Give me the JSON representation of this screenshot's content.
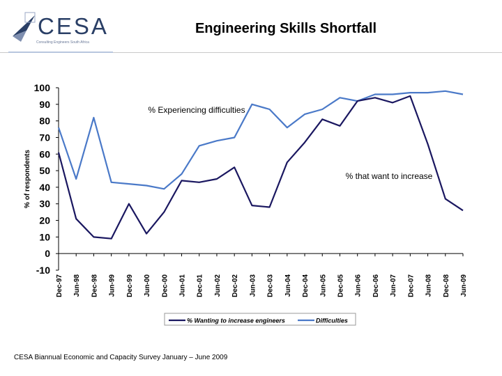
{
  "header": {
    "logo_text": "CESA",
    "logo_tagline": "Consulting Engineers South Africa",
    "title": "Engineering Skills Shortfall"
  },
  "footer": {
    "source": "CESA Biannual Economic and Capacity Survey January – June 2009"
  },
  "colors": {
    "series_increase": "#1a1760",
    "series_difficulties": "#4a79c8",
    "logo": "#2a3f66"
  },
  "chart_data": {
    "type": "line",
    "title": "Engineering Skills Shortfall",
    "xlabel": "",
    "ylabel": "% of respondents",
    "ylim": [
      -10,
      100
    ],
    "yticks": [
      "-10",
      "0",
      "10",
      "20",
      "30",
      "40",
      "50",
      "60",
      "70",
      "80",
      "90",
      "100"
    ],
    "grid": false,
    "legend": "bottom",
    "categories": [
      "Dec-97",
      "Jun-98",
      "Dec-98",
      "Jun-99",
      "Dec-99",
      "Jun-00",
      "Dec-00",
      "Jun-01",
      "Dec-01",
      "Jun-02",
      "Dec-02",
      "Jun-03",
      "Dec-03",
      "Jun-04",
      "Dec-04",
      "Jun-05",
      "Dec-05",
      "Jun-06",
      "Dec-06",
      "Jun-07",
      "Dec-07",
      "Jun-08",
      "Dec-08",
      "Jun-09"
    ],
    "series": [
      {
        "name": "% Wanting to increase engineers",
        "values": [
          61,
          21,
          10,
          9,
          30,
          12,
          25,
          44,
          43,
          45,
          52,
          29,
          28,
          55,
          67,
          81,
          77,
          92,
          94,
          91,
          95,
          66,
          33,
          26
        ]
      },
      {
        "name": "Difficulties",
        "values": [
          76,
          45,
          82,
          43,
          42,
          41,
          39,
          48,
          65,
          68,
          70,
          90,
          87,
          76,
          84,
          87,
          94,
          92,
          96,
          96,
          97,
          97,
          98,
          96
        ]
      }
    ],
    "annotations": [
      {
        "text": "% Experiencing difficulties"
      },
      {
        "text": "% that want to increase"
      }
    ]
  }
}
